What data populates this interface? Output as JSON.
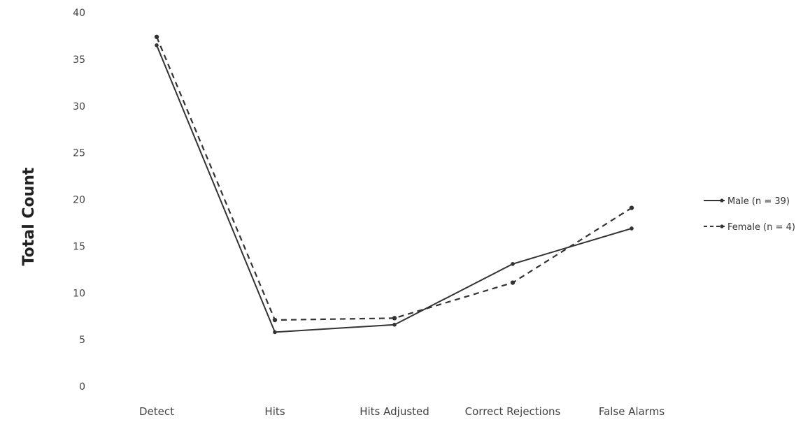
{
  "chart_data": {
    "type": "line",
    "title": "",
    "xlabel": "",
    "ylabel": "Total Count",
    "ylim": [
      0,
      40
    ],
    "yticks": [
      0,
      5,
      10,
      15,
      20,
      25,
      30,
      35,
      40
    ],
    "grid": false,
    "legend_position": "right",
    "categories": [
      "Detect",
      "Hits",
      "Hits Adjusted",
      "Correct Rejections",
      "False Alarms"
    ],
    "series": [
      {
        "name": "Male (n = 39)",
        "values": [
          36.5,
          5.8,
          6.6,
          13.1,
          16.9
        ],
        "style": "solid",
        "color": "#333333"
      },
      {
        "name": "Female (n = 4)",
        "values": [
          37.4,
          7.1,
          7.3,
          11.1,
          19.1
        ],
        "style": "dashed",
        "color": "#333333"
      }
    ]
  }
}
